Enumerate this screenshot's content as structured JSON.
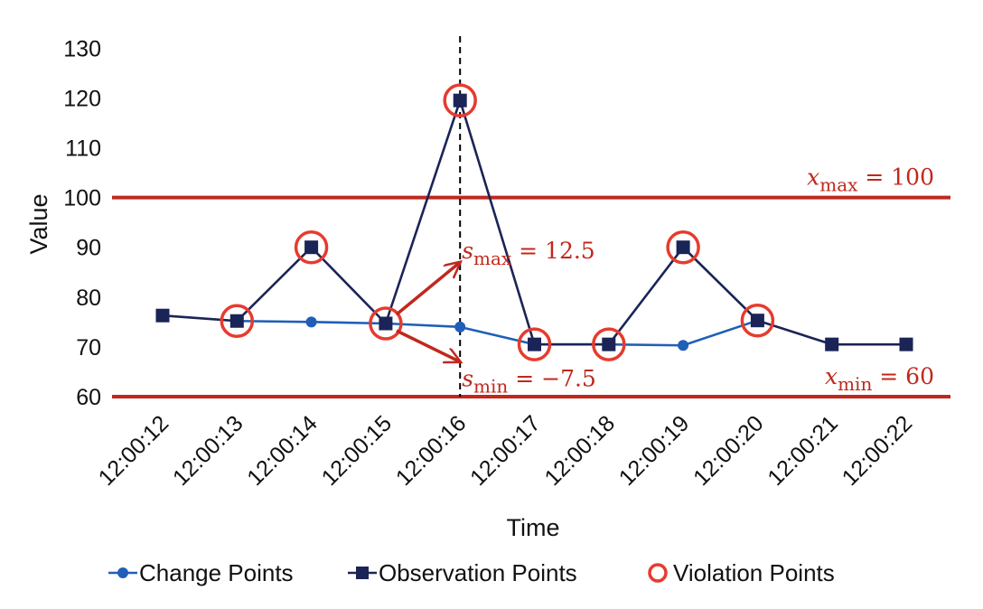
{
  "chart_data": {
    "type": "line",
    "xlabel": "Time",
    "ylabel": "Value",
    "ylim": [
      60,
      130
    ],
    "yticks": [
      60,
      70,
      80,
      90,
      100,
      110,
      120,
      130
    ],
    "categories": [
      "12:00:12",
      "12:00:13",
      "12:00:14",
      "12:00:15",
      "12:00:16",
      "12:00:17",
      "12:00:18",
      "12:00:19",
      "12:00:20",
      "12:00:21",
      "12:00:22"
    ],
    "series": [
      {
        "name": "Change Points",
        "color": "#1f5fb8",
        "marker": "circle",
        "points": [
          [
            1,
            75.2
          ],
          [
            2,
            75
          ],
          [
            3,
            74.7
          ],
          [
            4,
            74
          ],
          [
            5,
            70.5
          ],
          [
            6,
            70.5
          ],
          [
            7,
            70.3
          ],
          [
            8,
            75.3
          ]
        ]
      },
      {
        "name": "Observation Points",
        "color": "#1a2456",
        "marker": "square",
        "points": [
          [
            0,
            76.3
          ],
          [
            1,
            75.2
          ],
          [
            2,
            90
          ],
          [
            3,
            74.7
          ],
          [
            4,
            119.5
          ],
          [
            5,
            70.5
          ],
          [
            6,
            70.5
          ],
          [
            7,
            90
          ],
          [
            8,
            75.3
          ],
          [
            9,
            70.5
          ],
          [
            10,
            70.5
          ]
        ]
      },
      {
        "name": "Violation Points",
        "color": "#e63b2e",
        "marker": "ring",
        "points": [
          [
            1,
            75.2
          ],
          [
            2,
            90
          ],
          [
            3,
            74.7
          ],
          [
            4,
            119.5
          ],
          [
            5,
            70.5
          ],
          [
            6,
            70.5
          ],
          [
            7,
            90
          ],
          [
            8,
            75.3
          ]
        ]
      }
    ],
    "thresholds": [
      {
        "value": 100,
        "var": "x",
        "sub": "max",
        "rhs": " = 100",
        "color": "#c0281e"
      },
      {
        "value": 60,
        "var": "x",
        "sub": "min",
        "rhs": " = 60",
        "color": "#c0281e"
      }
    ],
    "vline": {
      "x": 4,
      "style": "dashed"
    },
    "slopes": [
      {
        "from": [
          3,
          74.7
        ],
        "to": [
          4,
          87
        ],
        "var": "s",
        "sub": "max",
        "rhs": " = 12.5"
      },
      {
        "from": [
          3,
          74.7
        ],
        "to": [
          4,
          67
        ],
        "var": "s",
        "sub": "min",
        "rhs": " = −7.5"
      }
    ],
    "legend_position": "bottom"
  }
}
